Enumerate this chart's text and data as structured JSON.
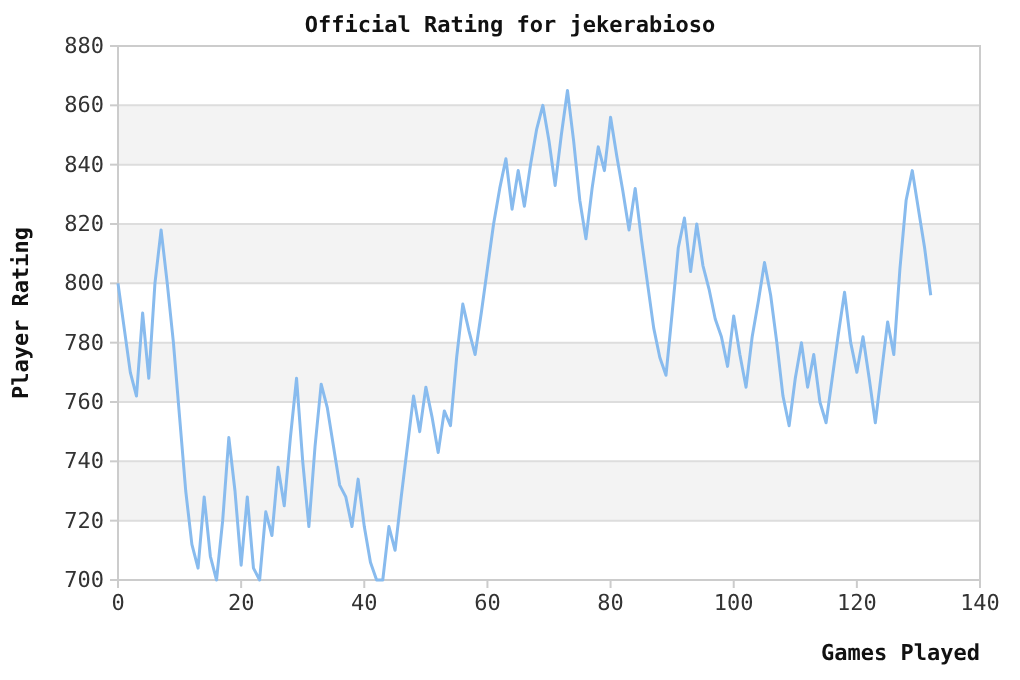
{
  "chart_data": {
    "type": "line",
    "title": "Official Rating for jekerabioso",
    "xlabel": "Games Played",
    "ylabel": "Player Rating",
    "x": [
      0,
      1,
      2,
      3,
      4,
      5,
      6,
      7,
      8,
      9,
      10,
      11,
      12,
      13,
      14,
      15,
      16,
      17,
      18,
      19,
      20,
      21,
      22,
      23,
      24,
      25,
      26,
      27,
      28,
      29,
      30,
      31,
      32,
      33,
      34,
      35,
      36,
      37,
      38,
      39,
      40,
      41,
      42,
      43,
      44,
      45,
      46,
      47,
      48,
      49,
      50,
      51,
      52,
      53,
      54,
      55,
      56,
      57,
      58,
      59,
      60,
      61,
      62,
      63,
      64,
      65,
      66,
      67,
      68,
      69,
      70,
      71,
      72,
      73,
      74,
      75,
      76,
      77,
      78,
      79,
      80,
      81,
      82,
      83,
      84,
      85,
      86,
      87,
      88,
      89,
      90,
      91,
      92,
      93,
      94,
      95,
      96,
      97,
      98,
      99,
      100,
      101,
      102,
      103,
      104,
      105,
      106,
      107,
      108,
      109,
      110,
      111,
      112,
      113,
      114,
      115,
      116,
      117,
      118,
      119,
      120,
      121,
      122,
      123,
      124,
      125,
      126,
      127,
      128,
      129,
      130,
      131,
      132
    ],
    "series": [
      {
        "color": "#88bbee",
        "values": [
          800,
          785,
          770,
          762,
          790,
          768,
          800,
          818,
          800,
          780,
          755,
          730,
          712,
          704,
          728,
          708,
          700,
          720,
          748,
          730,
          705,
          728,
          704,
          700,
          723,
          715,
          738,
          725,
          748,
          768,
          740,
          718,
          745,
          766,
          758,
          745,
          732,
          728,
          718,
          734,
          718,
          706,
          700,
          700,
          718,
          710,
          728,
          745,
          762,
          750,
          765,
          755,
          743,
          757,
          752,
          775,
          793,
          784,
          776,
          790,
          805,
          820,
          832,
          842,
          825,
          838,
          826,
          840,
          852,
          860,
          848,
          833,
          850,
          865,
          848,
          828,
          815,
          832,
          846,
          838,
          856,
          843,
          831,
          818,
          832,
          815,
          800,
          785,
          775,
          769,
          790,
          812,
          822,
          804,
          820,
          806,
          798,
          788,
          782,
          772,
          789,
          776,
          765,
          782,
          794,
          807,
          796,
          780,
          762,
          752,
          768,
          780,
          765,
          776,
          760,
          753,
          768,
          783,
          797,
          780,
          770,
          782,
          768,
          753,
          770,
          787,
          776,
          805,
          828,
          838,
          825,
          812,
          796
        ]
      }
    ],
    "xlim": [
      0,
      140
    ],
    "xticks": [
      0,
      20,
      40,
      60,
      80,
      100,
      120,
      140
    ],
    "ylim": [
      700,
      880
    ],
    "yticks": [
      700,
      720,
      740,
      760,
      780,
      800,
      820,
      840,
      860,
      880
    ],
    "grid": "y",
    "marker": "none",
    "line_style": "solid"
  }
}
